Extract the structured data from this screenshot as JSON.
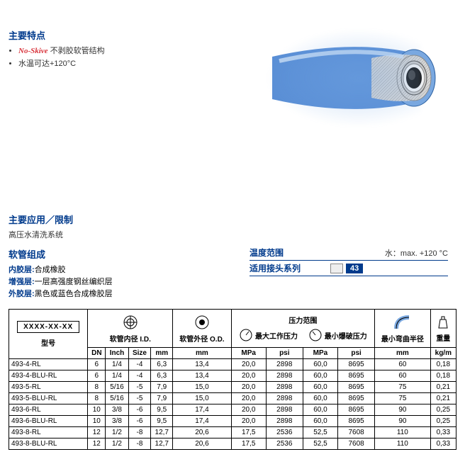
{
  "features": {
    "title": "主要特点",
    "bullets": {
      "b1_prefix": "No-Skive",
      "b1_rest": " 不剥胶软管结构",
      "b2": "水温可达+120°C"
    }
  },
  "application": {
    "title": "主要应用／限制",
    "text": "高压水清洗系统"
  },
  "composition": {
    "title": "软管组成",
    "inner_key": "内胶层:",
    "inner_val": "合成橡胶",
    "reinf_key": "增强层:",
    "reinf_val": "一层高强度钢丝编织层",
    "outer_key": "外胶层:",
    "outer_val": "黑色或蓝色合成橡胶层"
  },
  "meta": {
    "temp_label": "温度范围",
    "temp_val": "水：max. +120 °C",
    "fitting_label": "适用接头系列",
    "fitting_badge": "43"
  },
  "table": {
    "model_code": "XXXX-XX-XX",
    "model_label": "型号",
    "id_label": "软管内径 I.D.",
    "od_label": "软管外径 O.D.",
    "pressure_label": "压力范围",
    "maxwp_label": "最大工作压力",
    "minburst_label": "最小爆破压力",
    "bend_label": "最小弯曲半径",
    "weight_label": "重量",
    "cols": {
      "dn": "DN",
      "inch": "Inch",
      "size": "Size",
      "mm": "mm",
      "mpa": "MPa",
      "psi": "psi",
      "kgm": "kg/m"
    },
    "rows": [
      {
        "model": "493-4-RL",
        "dn": "6",
        "inch": "1/4",
        "size": "-4",
        "id_mm": "6,3",
        "od_mm": "13,4",
        "wp_mpa": "20,0",
        "wp_psi": "2898",
        "b_mpa": "60,0",
        "b_psi": "8695",
        "bend": "60",
        "wt": "0,18"
      },
      {
        "model": "493-4-BLU-RL",
        "dn": "6",
        "inch": "1/4",
        "size": "-4",
        "id_mm": "6,3",
        "od_mm": "13,4",
        "wp_mpa": "20,0",
        "wp_psi": "2898",
        "b_mpa": "60,0",
        "b_psi": "8695",
        "bend": "60",
        "wt": "0,18"
      },
      {
        "model": "493-5-RL",
        "dn": "8",
        "inch": "5/16",
        "size": "-5",
        "id_mm": "7,9",
        "od_mm": "15,0",
        "wp_mpa": "20,0",
        "wp_psi": "2898",
        "b_mpa": "60,0",
        "b_psi": "8695",
        "bend": "75",
        "wt": "0,21"
      },
      {
        "model": "493-5-BLU-RL",
        "dn": "8",
        "inch": "5/16",
        "size": "-5",
        "id_mm": "7,9",
        "od_mm": "15,0",
        "wp_mpa": "20,0",
        "wp_psi": "2898",
        "b_mpa": "60,0",
        "b_psi": "8695",
        "bend": "75",
        "wt": "0,21"
      },
      {
        "model": "493-6-RL",
        "dn": "10",
        "inch": "3/8",
        "size": "-6",
        "id_mm": "9,5",
        "od_mm": "17,4",
        "wp_mpa": "20,0",
        "wp_psi": "2898",
        "b_mpa": "60,0",
        "b_psi": "8695",
        "bend": "90",
        "wt": "0,25"
      },
      {
        "model": "493-6-BLU-RL",
        "dn": "10",
        "inch": "3/8",
        "size": "-6",
        "id_mm": "9,5",
        "od_mm": "17,4",
        "wp_mpa": "20,0",
        "wp_psi": "2898",
        "b_mpa": "60,0",
        "b_psi": "8695",
        "bend": "90",
        "wt": "0,25"
      },
      {
        "model": "493-8-RL",
        "dn": "12",
        "inch": "1/2",
        "size": "-8",
        "id_mm": "12,7",
        "od_mm": "20,6",
        "wp_mpa": "17,5",
        "wp_psi": "2536",
        "b_mpa": "52,5",
        "b_psi": "7608",
        "bend": "110",
        "wt": "0,33"
      },
      {
        "model": "493-8-BLU-RL",
        "dn": "12",
        "inch": "1/2",
        "size": "-8",
        "id_mm": "12,7",
        "od_mm": "20,6",
        "wp_mpa": "17,5",
        "wp_psi": "2536",
        "b_mpa": "52,5",
        "b_psi": "7608",
        "bend": "110",
        "wt": "0,33"
      }
    ]
  },
  "colors": {
    "brand_blue": "#003a8c",
    "hose_blue": "#5a8fd6",
    "accent_red": "#d9363e"
  }
}
